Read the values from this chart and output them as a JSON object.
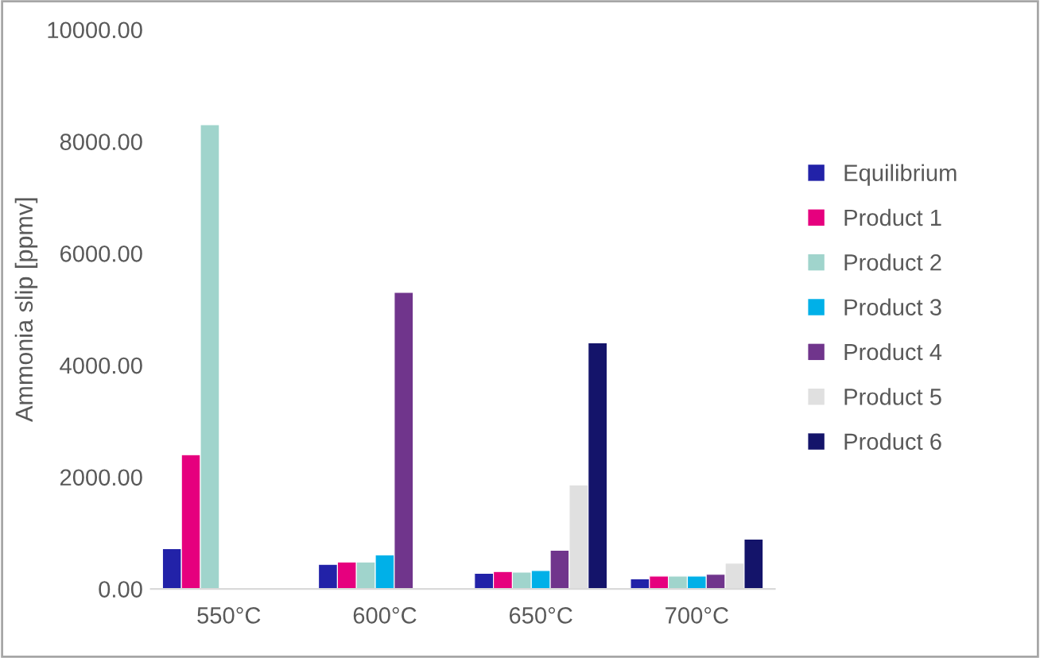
{
  "chart_data": {
    "type": "bar",
    "ylabel": "Ammonia slip [ppmv]",
    "categories": [
      "550°C",
      "600°C",
      "650°C",
      "700°C"
    ],
    "series": [
      {
        "name": "Equilibrium",
        "color": "#2222a8",
        "values": [
          720,
          440,
          280,
          180
        ]
      },
      {
        "name": "Product 1",
        "color": "#e6007e",
        "values": [
          2400,
          480,
          310,
          230
        ]
      },
      {
        "name": "Product 2",
        "color": "#a0d4cc",
        "values": [
          8300,
          480,
          300,
          230
        ]
      },
      {
        "name": "Product 3",
        "color": "#00b0e8",
        "values": [
          null,
          610,
          330,
          230
        ]
      },
      {
        "name": "Product 4",
        "color": "#70358c",
        "values": [
          null,
          5300,
          690,
          260
        ]
      },
      {
        "name": "Product 5",
        "color": "#e0e0e0",
        "values": [
          null,
          null,
          1860,
          460
        ]
      },
      {
        "name": "Product 6",
        "color": "#14146a",
        "values": [
          null,
          null,
          4400,
          890
        ]
      }
    ],
    "ylim": [
      0,
      10000
    ],
    "yticks": [
      {
        "value": 0,
        "label": "0.00"
      },
      {
        "value": 2000,
        "label": "2000.00"
      },
      {
        "value": 4000,
        "label": "4000.00"
      },
      {
        "value": 6000,
        "label": "6000.00"
      },
      {
        "value": 8000,
        "label": "8000.00"
      },
      {
        "value": 10000,
        "label": "10000.00"
      }
    ],
    "grid": false,
    "legend": "right"
  }
}
